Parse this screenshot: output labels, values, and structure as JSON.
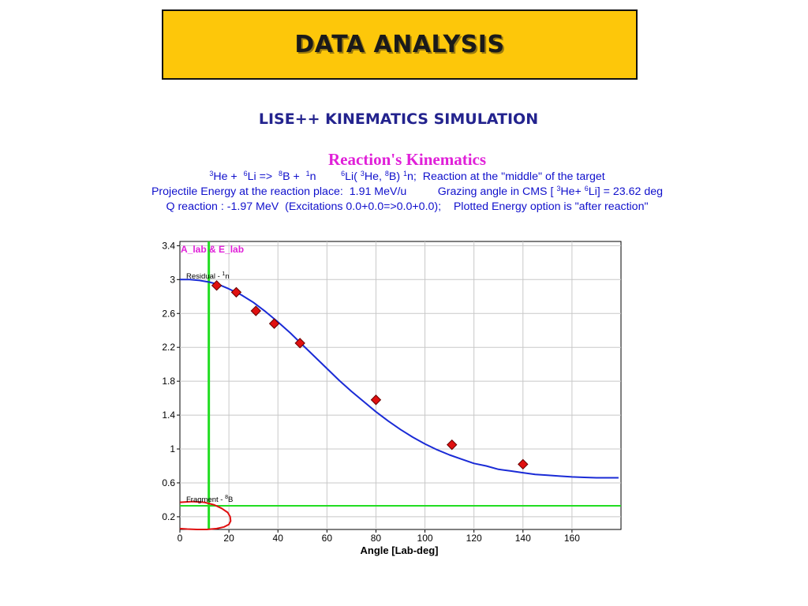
{
  "slide": {
    "title": "DATA ANALYSIS",
    "subtitle": "LISE++ KINEMATICS SIMULATION"
  },
  "reaction": {
    "title": "Reaction's Kinematics",
    "line1": {
      "eq": [
        {
          "sup": "3",
          "t": "He +  "
        },
        {
          "sup": "6",
          "t": "Li =>  "
        },
        {
          "sup": "8",
          "t": "B +  "
        },
        {
          "sup": "1",
          "t": "n        "
        },
        {
          "sup": "6",
          "t": "Li( "
        },
        {
          "sup": "3",
          "t": "He, "
        },
        {
          "sup": "8",
          "t": "B) "
        },
        {
          "sup": "1",
          "t": "n;  Reaction at the \"middle\" of the target"
        }
      ]
    },
    "line2": {
      "eq": [
        {
          "sup": "",
          "t": "Projectile Energy at the reaction place:  1.91 MeV/u          Grazing angle in CMS [ "
        },
        {
          "sup": "3",
          "t": "He+ "
        },
        {
          "sup": "6",
          "t": "Li] = 23.62 deg"
        }
      ]
    },
    "line3": {
      "eq": [
        {
          "sup": "",
          "t": "Q reaction : -1.97 MeV  (Excitations 0.0+0.0=>0.0+0.0);    Plotted Energy option is \"after reaction\""
        }
      ]
    }
  },
  "chart_data": {
    "type": "scatter",
    "legend_label": "A_lab  &  E_lab",
    "xlabel": "Angle [Lab-deg]",
    "ylabel": "",
    "xlim": [
      0,
      180
    ],
    "ylim": [
      0.05,
      3.45
    ],
    "x_ticks": [
      0,
      20,
      40,
      60,
      80,
      100,
      120,
      140,
      160
    ],
    "y_ticks": [
      0.2,
      0.6,
      1,
      1.4,
      1.8,
      2.2,
      2.6,
      3,
      3.4
    ],
    "grid": true,
    "annotations": {
      "residual": {
        "text": "Residual - ",
        "sup": "1",
        "rest": "n"
      },
      "fragment": {
        "text": "Fragment - ",
        "sup": "8",
        "rest": "B"
      }
    },
    "series": [
      {
        "name": "Residual - 1n",
        "kind": "line",
        "color": "#1a2bd6",
        "x": [
          0,
          4,
          8,
          12,
          16,
          20,
          25,
          30,
          35,
          40,
          45,
          50,
          55,
          60,
          65,
          70,
          75,
          80,
          85,
          90,
          95,
          100,
          105,
          110,
          115,
          120,
          125,
          130,
          135,
          140,
          145,
          150,
          155,
          160,
          165,
          170,
          175,
          179
        ],
        "y": [
          3.0,
          3.0,
          2.99,
          2.97,
          2.94,
          2.89,
          2.82,
          2.73,
          2.62,
          2.5,
          2.37,
          2.23,
          2.09,
          1.95,
          1.81,
          1.68,
          1.56,
          1.44,
          1.33,
          1.23,
          1.14,
          1.06,
          0.99,
          0.93,
          0.88,
          0.83,
          0.8,
          0.76,
          0.74,
          0.72,
          0.7,
          0.69,
          0.68,
          0.67,
          0.665,
          0.66,
          0.66,
          0.66
        ]
      },
      {
        "name": "Data",
        "kind": "scatter",
        "marker": "diamond",
        "color": "#e01010",
        "x": [
          15,
          23,
          31,
          38.5,
          49,
          80,
          111,
          140
        ],
        "y": [
          2.93,
          2.85,
          2.63,
          2.48,
          2.25,
          1.58,
          1.05,
          0.82
        ]
      },
      {
        "name": "Fragment - 8B",
        "kind": "line",
        "color": "#e01010",
        "x": [
          0,
          5,
          10,
          14,
          17,
          19.5,
          20.5,
          20.7,
          20,
          18,
          15,
          11,
          7,
          3,
          0
        ],
        "y": [
          0.37,
          0.38,
          0.37,
          0.34,
          0.3,
          0.25,
          0.2,
          0.15,
          0.11,
          0.08,
          0.06,
          0.05,
          0.05,
          0.055,
          0.06
        ]
      }
    ],
    "reference_lines": {
      "color": "#22dd22",
      "vertical_x": 11.8,
      "horizontal_y": 0.33
    }
  }
}
